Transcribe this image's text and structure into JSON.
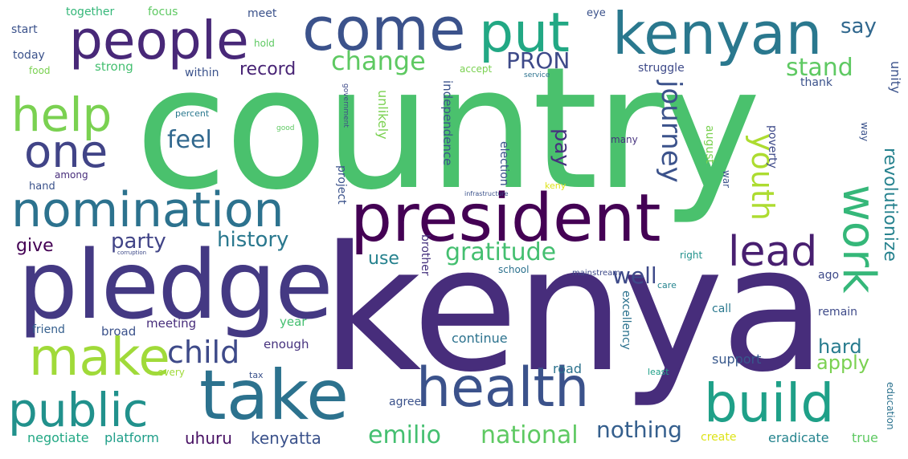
{
  "words": [
    {
      "text": "country",
      "color": "#4ac16d"
    },
    {
      "text": "kenya",
      "color": "#472d7b"
    },
    {
      "text": "pledge",
      "color": "#443983"
    },
    {
      "text": "president",
      "color": "#440154"
    },
    {
      "text": "take",
      "color": "#2c728e"
    },
    {
      "text": "health",
      "color": "#3b528b"
    },
    {
      "text": "kenyan",
      "color": "#2a788e"
    },
    {
      "text": "come",
      "color": "#3b528b"
    },
    {
      "text": "people",
      "color": "#482878"
    },
    {
      "text": "put",
      "color": "#22a884"
    },
    {
      "text": "nomination",
      "color": "#2c728e"
    },
    {
      "text": "make",
      "color": "#a0da39"
    },
    {
      "text": "public",
      "color": "#21918c"
    },
    {
      "text": "build",
      "color": "#1fa088"
    },
    {
      "text": "help",
      "color": "#7ad151"
    },
    {
      "text": "one",
      "color": "#414487"
    },
    {
      "text": "work",
      "color": "#35b779"
    },
    {
      "text": "lead",
      "color": "#481f70"
    },
    {
      "text": "child",
      "color": "#3e4a89"
    },
    {
      "text": "change",
      "color": "#5ec962"
    },
    {
      "text": "youth",
      "color": "#addc30"
    },
    {
      "text": "journey",
      "color": "#3b528b"
    },
    {
      "text": "feel",
      "color": "#31688e"
    },
    {
      "text": "emilio",
      "color": "#44bf70"
    },
    {
      "text": "national",
      "color": "#5ec962"
    },
    {
      "text": "gratitude",
      "color": "#44bf70"
    },
    {
      "text": "history",
      "color": "#2a788e"
    },
    {
      "text": "party",
      "color": "#414487"
    },
    {
      "text": "pay",
      "color": "#46327e"
    },
    {
      "text": "revolutionize",
      "color": "#26828e"
    },
    {
      "text": "well",
      "color": "#3e4a89"
    },
    {
      "text": "stand",
      "color": "#5ec962"
    },
    {
      "text": "PRON",
      "color": "#3e4a89"
    },
    {
      "text": "nothing",
      "color": "#355f8d"
    },
    {
      "text": "hard",
      "color": "#287c8e"
    },
    {
      "text": "apply",
      "color": "#7ad151"
    },
    {
      "text": "use",
      "color": "#26828e"
    },
    {
      "text": "record",
      "color": "#482475"
    },
    {
      "text": "say",
      "color": "#31688e"
    },
    {
      "text": "uhuru",
      "color": "#471063"
    },
    {
      "text": "kenyatta",
      "color": "#3b528b"
    },
    {
      "text": "give",
      "color": "#440154"
    },
    {
      "text": "platform",
      "color": "#1f9e89"
    },
    {
      "text": "negotiate",
      "color": "#22a884"
    },
    {
      "text": "eradicate",
      "color": "#25848e"
    },
    {
      "text": "true",
      "color": "#5ec962"
    },
    {
      "text": "create",
      "color": "#dde318"
    },
    {
      "text": "continue",
      "color": "#2c728e"
    },
    {
      "text": "agree",
      "color": "#3b528b"
    },
    {
      "text": "road",
      "color": "#2c728e"
    },
    {
      "text": "support",
      "color": "#38588c"
    },
    {
      "text": "enough",
      "color": "#46327e"
    },
    {
      "text": "year",
      "color": "#44bf70"
    },
    {
      "text": "meeting",
      "color": "#472d7b"
    },
    {
      "text": "broad",
      "color": "#3b528b"
    },
    {
      "text": "friend",
      "color": "#355f8d"
    },
    {
      "text": "every",
      "color": "#a0da39"
    },
    {
      "text": "tax",
      "color": "#3b528b"
    },
    {
      "text": "least",
      "color": "#1fa088"
    },
    {
      "text": "remain",
      "color": "#3e4a89"
    },
    {
      "text": "call",
      "color": "#2a788e"
    },
    {
      "text": "ago",
      "color": "#3e4a89"
    },
    {
      "text": "care",
      "color": "#25848e"
    },
    {
      "text": "right",
      "color": "#21918c"
    },
    {
      "text": "mainstream",
      "color": "#3e4a89"
    },
    {
      "text": "school",
      "color": "#2c728e"
    },
    {
      "text": "hand",
      "color": "#3b528b"
    },
    {
      "text": "among",
      "color": "#472d7b"
    },
    {
      "text": "percent",
      "color": "#2a788e"
    },
    {
      "text": "good",
      "color": "#5ec962"
    },
    {
      "text": "many",
      "color": "#46327e"
    },
    {
      "text": "thank",
      "color": "#3b528b"
    },
    {
      "text": "struggle",
      "color": "#3e4a89"
    },
    {
      "text": "unity",
      "color": "#3b528b"
    },
    {
      "text": "service",
      "color": "#2c728e"
    },
    {
      "text": "accept",
      "color": "#7ad151"
    },
    {
      "text": "within",
      "color": "#3b528b"
    },
    {
      "text": "strong",
      "color": "#44bf70"
    },
    {
      "text": "food",
      "color": "#7ad151"
    },
    {
      "text": "today",
      "color": "#3b528b"
    },
    {
      "text": "start",
      "color": "#3b528b"
    },
    {
      "text": "together",
      "color": "#35b779"
    },
    {
      "text": "focus",
      "color": "#5ec962"
    },
    {
      "text": "meet",
      "color": "#3b528b"
    },
    {
      "text": "hold",
      "color": "#5ec962"
    },
    {
      "text": "eye",
      "color": "#3b528b"
    },
    {
      "text": "keny",
      "color": "#dde318"
    },
    {
      "text": "infrastructure",
      "color": "#3b528b"
    },
    {
      "text": "corruption",
      "color": "#3e4a89"
    },
    {
      "text": "education",
      "color": "#2c728e"
    },
    {
      "text": "government",
      "color": "#3e4a89"
    },
    {
      "text": "project",
      "color": "#3b528b"
    },
    {
      "text": "unlikely",
      "color": "#7ad151"
    },
    {
      "text": "independence",
      "color": "#3b528b"
    },
    {
      "text": "brother",
      "color": "#46327e"
    },
    {
      "text": "election",
      "color": "#3b528b"
    },
    {
      "text": "excellency",
      "color": "#2c728e"
    },
    {
      "text": "august",
      "color": "#7ad151"
    },
    {
      "text": "war",
      "color": "#3b528b"
    },
    {
      "text": "poverty",
      "color": "#3e4a89"
    },
    {
      "text": "way",
      "color": "#3b528b"
    }
  ]
}
